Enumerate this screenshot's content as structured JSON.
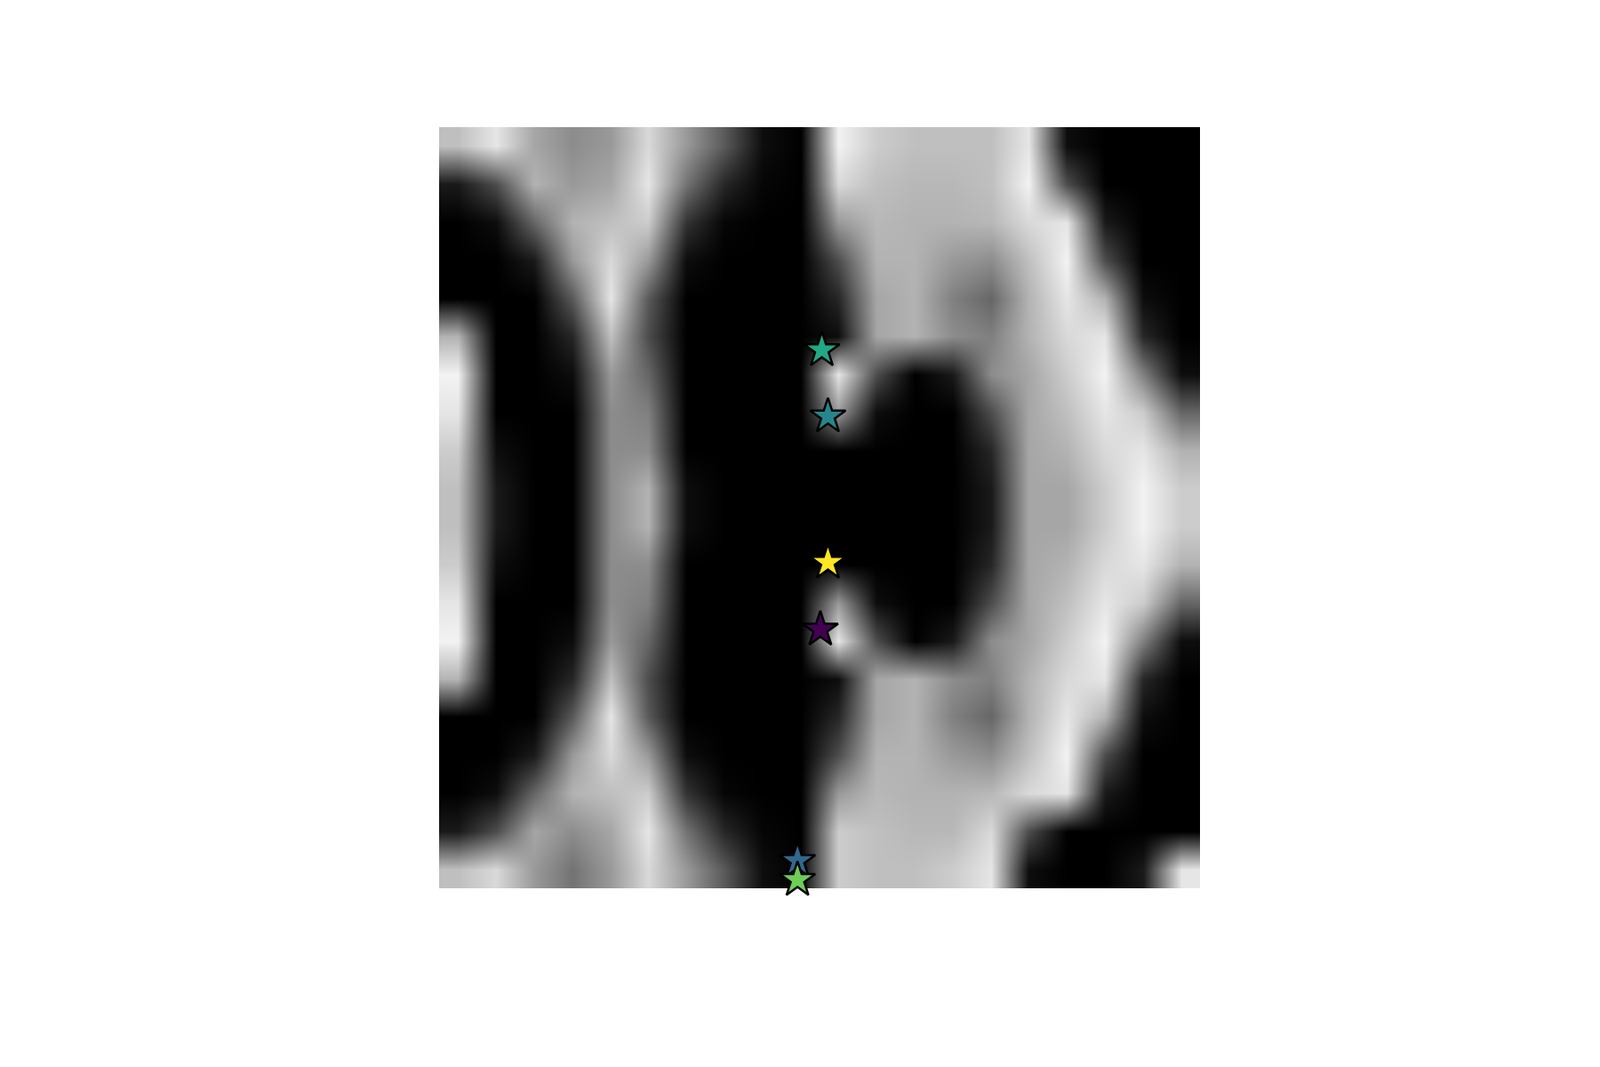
{
  "chart_data": {
    "type": "heatmap",
    "xlim": [
      0,
      100
    ],
    "ylim": [
      0,
      100
    ],
    "tick_labels": false,
    "x": [
      2.5,
      7.5,
      12.5,
      17.5,
      22.5,
      27.5,
      32.5,
      37.5,
      42.5,
      47.5,
      52.5,
      57.5,
      62.5,
      67.5,
      72.5,
      77.5,
      82.5,
      87.5,
      92.5,
      97.5
    ],
    "y": [
      97.5,
      92.5,
      87.5,
      82.5,
      77.5,
      72.5,
      67.5,
      62.5,
      57.5,
      52.5,
      47.5,
      42.5,
      37.5,
      32.5,
      27.5,
      22.5,
      17.5,
      12.5,
      7.5,
      2.5
    ],
    "zlim": [
      0,
      1
    ],
    "z": [
      [
        0.75,
        0.9,
        0.65,
        0.55,
        0.6,
        0.85,
        0.6,
        0.35,
        0.05,
        0.0,
        0.95,
        0.8,
        0.75,
        0.75,
        0.75,
        0.9,
        0.05,
        0.0,
        0.0,
        0.0
      ],
      [
        0.1,
        0.3,
        0.7,
        0.6,
        0.65,
        0.9,
        0.45,
        0.15,
        0.02,
        0.0,
        0.85,
        0.75,
        0.72,
        0.72,
        0.75,
        0.95,
        0.3,
        0.0,
        0.0,
        0.0
      ],
      [
        0.0,
        0.05,
        0.4,
        0.7,
        0.75,
        0.8,
        0.2,
        0.02,
        0.0,
        0.0,
        0.6,
        0.72,
        0.7,
        0.7,
        0.72,
        0.85,
        0.9,
        0.1,
        0.0,
        0.0
      ],
      [
        0.0,
        0.0,
        0.1,
        0.6,
        0.85,
        0.6,
        0.05,
        0.0,
        0.0,
        0.0,
        0.3,
        0.7,
        0.7,
        0.6,
        0.55,
        0.75,
        0.95,
        0.3,
        0.0,
        0.0
      ],
      [
        0.0,
        0.0,
        0.0,
        0.35,
        0.9,
        0.35,
        0.0,
        0.0,
        0.0,
        0.0,
        0.15,
        0.65,
        0.7,
        0.5,
        0.4,
        0.7,
        0.9,
        0.7,
        0.05,
        0.0
      ],
      [
        0.7,
        0.0,
        0.0,
        0.15,
        0.75,
        0.3,
        0.0,
        0.0,
        0.0,
        0.0,
        0.05,
        0.65,
        0.7,
        0.55,
        0.5,
        0.7,
        0.85,
        0.9,
        0.15,
        0.0
      ],
      [
        0.95,
        0.0,
        0.0,
        0.05,
        0.6,
        0.4,
        0.0,
        0.0,
        0.0,
        0.0,
        0.9,
        0.3,
        0.0,
        0.1,
        0.55,
        0.65,
        0.8,
        0.95,
        0.5,
        0.05
      ],
      [
        0.9,
        0.0,
        0.0,
        0.0,
        0.55,
        0.5,
        0.0,
        0.0,
        0.0,
        0.0,
        0.6,
        0.05,
        0.0,
        0.0,
        0.3,
        0.65,
        0.75,
        0.9,
        0.8,
        0.4
      ],
      [
        0.8,
        0.05,
        0.0,
        0.0,
        0.55,
        0.55,
        0.0,
        0.0,
        0.0,
        0.0,
        0.0,
        0.0,
        0.0,
        0.0,
        0.15,
        0.65,
        0.7,
        0.85,
        0.9,
        0.7
      ],
      [
        0.75,
        0.1,
        0.0,
        0.0,
        0.55,
        0.7,
        0.05,
        0.0,
        0.0,
        0.0,
        0.0,
        0.0,
        0.0,
        0.0,
        0.1,
        0.65,
        0.65,
        0.8,
        0.95,
        0.8
      ],
      [
        0.75,
        0.1,
        0.0,
        0.0,
        0.55,
        0.7,
        0.05,
        0.0,
        0.0,
        0.0,
        0.0,
        0.0,
        0.0,
        0.0,
        0.1,
        0.65,
        0.65,
        0.8,
        0.95,
        0.8
      ],
      [
        0.8,
        0.05,
        0.0,
        0.0,
        0.55,
        0.55,
        0.0,
        0.0,
        0.0,
        0.0,
        0.0,
        0.0,
        0.0,
        0.0,
        0.15,
        0.65,
        0.7,
        0.85,
        0.9,
        0.7
      ],
      [
        0.9,
        0.0,
        0.0,
        0.0,
        0.55,
        0.5,
        0.0,
        0.0,
        0.0,
        0.0,
        0.6,
        0.05,
        0.0,
        0.0,
        0.3,
        0.65,
        0.75,
        0.9,
        0.8,
        0.4
      ],
      [
        0.95,
        0.0,
        0.0,
        0.05,
        0.6,
        0.4,
        0.0,
        0.0,
        0.0,
        0.0,
        0.9,
        0.3,
        0.0,
        0.1,
        0.55,
        0.65,
        0.8,
        0.95,
        0.5,
        0.05
      ],
      [
        0.7,
        0.0,
        0.0,
        0.15,
        0.75,
        0.3,
        0.0,
        0.0,
        0.0,
        0.0,
        0.05,
        0.65,
        0.7,
        0.55,
        0.5,
        0.7,
        0.85,
        0.9,
        0.15,
        0.0
      ],
      [
        0.0,
        0.0,
        0.0,
        0.35,
        0.9,
        0.35,
        0.0,
        0.0,
        0.0,
        0.0,
        0.15,
        0.65,
        0.7,
        0.5,
        0.4,
        0.7,
        0.9,
        0.7,
        0.05,
        0.0
      ],
      [
        0.0,
        0.0,
        0.1,
        0.6,
        0.85,
        0.6,
        0.05,
        0.0,
        0.0,
        0.0,
        0.3,
        0.7,
        0.7,
        0.6,
        0.55,
        0.75,
        0.95,
        0.3,
        0.0,
        0.0
      ],
      [
        0.0,
        0.05,
        0.4,
        0.7,
        0.75,
        0.8,
        0.2,
        0.02,
        0.0,
        0.0,
        0.6,
        0.72,
        0.7,
        0.7,
        0.72,
        0.85,
        0.9,
        0.1,
        0.0,
        0.0
      ],
      [
        0.1,
        0.3,
        0.65,
        0.55,
        0.65,
        0.9,
        0.45,
        0.15,
        0.02,
        0.0,
        0.8,
        0.75,
        0.72,
        0.72,
        0.85,
        0.3,
        0.0,
        0.0,
        0.0,
        0.0
      ],
      [
        0.75,
        0.85,
        0.6,
        0.45,
        0.6,
        0.85,
        0.6,
        0.35,
        0.05,
        0.0,
        0.8,
        0.75,
        0.75,
        0.8,
        0.9,
        0.05,
        0.0,
        0.0,
        0.1,
        0.9
      ]
    ],
    "series": [
      {
        "type": "scatter",
        "marker": "star",
        "color": "#22a884",
        "x": [
          50.3
        ],
        "y": [
          70.7
        ]
      },
      {
        "type": "scatter",
        "marker": "star",
        "color": "#26868e",
        "x": [
          51.1
        ],
        "y": [
          62.0
        ]
      },
      {
        "type": "scatter",
        "marker": "star",
        "color": "#fde725",
        "x": [
          51.1
        ],
        "y": [
          42.8
        ]
      },
      {
        "type": "scatter",
        "marker": "star",
        "color": "#440154",
        "x": [
          50.1
        ],
        "y": [
          34.0
        ]
      },
      {
        "type": "scatter",
        "marker": "star",
        "color": "#31688e",
        "x": [
          47.1
        ],
        "y": [
          3.6
        ]
      },
      {
        "type": "scatter",
        "marker": "star",
        "color": "#6ece58",
        "x": [
          47.1
        ],
        "y": [
          1.1
        ]
      }
    ]
  }
}
